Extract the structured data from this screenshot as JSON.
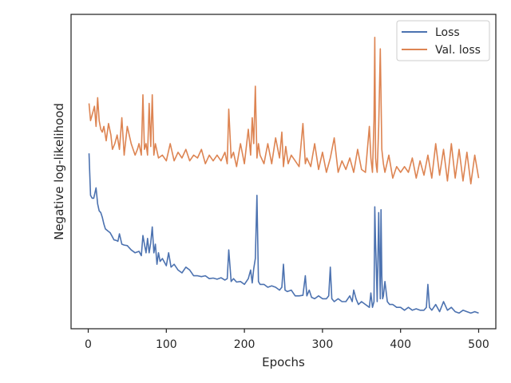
{
  "chart_data": {
    "type": "line",
    "title": "",
    "xlabel": "Epochs",
    "ylabel": "Negative log-likelihood",
    "xlim": [
      -22,
      522
    ],
    "ylim": [
      0,
      1
    ],
    "xticks": [
      0,
      100,
      200,
      300,
      400,
      500
    ],
    "grid": false,
    "legend_position": "top-right",
    "y_tick_labels_shown": false,
    "series": [
      {
        "name": "Loss",
        "color": "#4c72b0",
        "x": [
          1,
          3,
          5,
          7,
          10,
          12,
          14,
          16,
          18,
          20,
          22,
          25,
          28,
          30,
          33,
          36,
          38,
          40,
          43,
          46,
          50,
          55,
          60,
          65,
          68,
          70,
          72,
          74,
          76,
          78,
          80,
          82,
          84,
          86,
          88,
          90,
          92,
          95,
          100,
          103,
          106,
          110,
          115,
          120,
          125,
          130,
          135,
          140,
          145,
          150,
          155,
          160,
          165,
          170,
          175,
          178,
          180,
          183,
          186,
          190,
          195,
          200,
          205,
          208,
          210,
          212,
          214,
          216,
          218,
          220,
          225,
          230,
          235,
          240,
          245,
          248,
          250,
          252,
          255,
          260,
          265,
          270,
          275,
          278,
          280,
          283,
          286,
          290,
          295,
          300,
          305,
          308,
          310,
          312,
          315,
          320,
          325,
          330,
          335,
          338,
          340,
          343,
          346,
          350,
          355,
          360,
          362,
          364,
          366,
          367,
          368,
          369,
          370,
          372,
          373,
          374,
          375,
          376,
          377,
          378,
          380,
          383,
          386,
          390,
          395,
          400,
          405,
          410,
          415,
          420,
          425,
          430,
          433,
          435,
          437,
          440,
          445,
          450,
          455,
          460,
          465,
          470,
          475,
          480,
          485,
          490,
          495,
          500
        ],
        "y": [
          0.566,
          0.42,
          0.41,
          0.41,
          0.446,
          0.39,
          0.366,
          0.36,
          0.344,
          0.32,
          0.303,
          0.296,
          0.29,
          0.28,
          0.265,
          0.263,
          0.26,
          0.286,
          0.25,
          0.247,
          0.245,
          0.23,
          0.22,
          0.225,
          0.21,
          0.28,
          0.25,
          0.22,
          0.27,
          0.22,
          0.255,
          0.31,
          0.22,
          0.25,
          0.18,
          0.22,
          0.19,
          0.2,
          0.175,
          0.22,
          0.17,
          0.18,
          0.16,
          0.15,
          0.17,
          0.16,
          0.14,
          0.14,
          0.137,
          0.14,
          0.13,
          0.132,
          0.128,
          0.133,
          0.125,
          0.13,
          0.23,
          0.12,
          0.13,
          0.118,
          0.12,
          0.11,
          0.13,
          0.16,
          0.115,
          0.165,
          0.2,
          0.42,
          0.12,
          0.11,
          0.11,
          0.1,
          0.105,
          0.1,
          0.09,
          0.1,
          0.18,
          0.09,
          0.085,
          0.09,
          0.07,
          0.07,
          0.072,
          0.14,
          0.07,
          0.09,
          0.065,
          0.06,
          0.07,
          0.06,
          0.06,
          0.07,
          0.17,
          0.06,
          0.05,
          0.06,
          0.05,
          0.05,
          0.07,
          0.05,
          0.09,
          0.06,
          0.04,
          0.05,
          0.04,
          0.03,
          0.08,
          0.03,
          0.05,
          0.38,
          0.25,
          0.16,
          0.05,
          0.36,
          0.2,
          0.06,
          0.37,
          0.14,
          0.06,
          0.07,
          0.12,
          0.05,
          0.04,
          0.04,
          0.03,
          0.03,
          0.02,
          0.03,
          0.02,
          0.025,
          0.02,
          0.02,
          0.03,
          0.11,
          0.03,
          0.02,
          0.04,
          0.015,
          0.05,
          0.02,
          0.03,
          0.015,
          0.01,
          0.02,
          0.015,
          0.01,
          0.015,
          0.01
        ]
      },
      {
        "name": "Val. loss",
        "color": "#dd8452",
        "x": [
          1,
          3,
          5,
          8,
          10,
          12,
          14,
          16,
          18,
          20,
          23,
          26,
          29,
          31,
          34,
          37,
          40,
          43,
          46,
          50,
          55,
          60,
          63,
          65,
          68,
          70,
          72,
          74,
          76,
          78,
          80,
          82,
          84,
          86,
          90,
          95,
          100,
          105,
          110,
          115,
          120,
          125,
          130,
          135,
          140,
          145,
          150,
          155,
          160,
          165,
          170,
          175,
          178,
          180,
          183,
          186,
          190,
          195,
          200,
          205,
          208,
          210,
          212,
          214,
          216,
          218,
          220,
          225,
          230,
          235,
          240,
          245,
          248,
          250,
          253,
          256,
          260,
          265,
          270,
          275,
          278,
          280,
          285,
          290,
          295,
          300,
          305,
          310,
          315,
          320,
          325,
          330,
          335,
          340,
          345,
          350,
          355,
          360,
          362,
          364,
          366,
          367,
          368,
          369,
          370,
          372,
          374,
          376,
          378,
          380,
          385,
          390,
          395,
          400,
          405,
          410,
          415,
          420,
          425,
          430,
          435,
          440,
          445,
          450,
          455,
          460,
          465,
          470,
          475,
          480,
          485,
          490,
          495,
          500
        ],
        "y": [
          0.74,
          0.68,
          0.7,
          0.73,
          0.66,
          0.76,
          0.68,
          0.65,
          0.64,
          0.66,
          0.61,
          0.67,
          0.63,
          0.58,
          0.6,
          0.63,
          0.58,
          0.69,
          0.56,
          0.66,
          0.6,
          0.56,
          0.58,
          0.6,
          0.56,
          0.77,
          0.58,
          0.6,
          0.56,
          0.74,
          0.59,
          0.77,
          0.56,
          0.6,
          0.55,
          0.56,
          0.54,
          0.6,
          0.54,
          0.57,
          0.55,
          0.58,
          0.54,
          0.56,
          0.55,
          0.58,
          0.53,
          0.56,
          0.54,
          0.56,
          0.54,
          0.57,
          0.53,
          0.72,
          0.55,
          0.57,
          0.52,
          0.6,
          0.53,
          0.65,
          0.56,
          0.69,
          0.6,
          0.8,
          0.55,
          0.6,
          0.56,
          0.53,
          0.6,
          0.53,
          0.62,
          0.55,
          0.64,
          0.52,
          0.59,
          0.53,
          0.56,
          0.54,
          0.52,
          0.67,
          0.53,
          0.55,
          0.52,
          0.6,
          0.51,
          0.57,
          0.5,
          0.55,
          0.62,
          0.5,
          0.54,
          0.51,
          0.55,
          0.5,
          0.58,
          0.51,
          0.5,
          0.66,
          0.55,
          0.5,
          0.68,
          0.97,
          0.55,
          0.52,
          0.5,
          0.66,
          0.93,
          0.58,
          0.53,
          0.5,
          0.56,
          0.48,
          0.52,
          0.5,
          0.52,
          0.5,
          0.55,
          0.48,
          0.54,
          0.49,
          0.56,
          0.48,
          0.6,
          0.49,
          0.58,
          0.47,
          0.6,
          0.48,
          0.58,
          0.47,
          0.57,
          0.46,
          0.56,
          0.48
        ]
      }
    ]
  }
}
